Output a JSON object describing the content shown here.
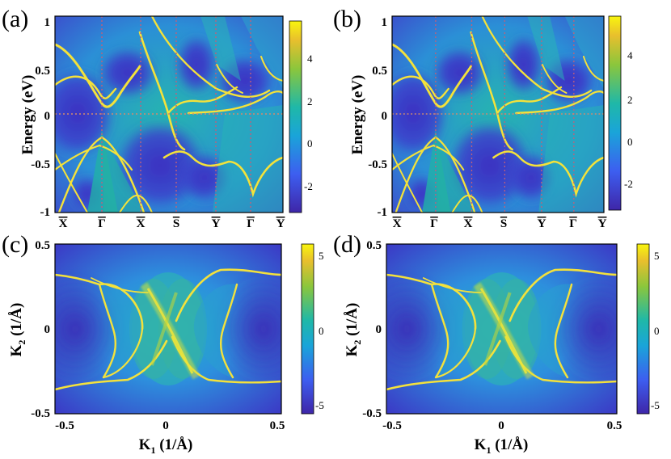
{
  "chart_data": [
    {
      "type": "heatmap",
      "panel_label": "(a)",
      "ylabel": "Energy (eV)",
      "ylim": [
        -1,
        1
      ],
      "y_ticks": [
        "1",
        "0.5",
        "0",
        "-0.5",
        "-1"
      ],
      "x_ticks": [
        "X",
        "Γ",
        "X",
        "S",
        "Y",
        "Γ",
        "Y"
      ],
      "colorbar": {
        "ticks": [
          "4",
          "2",
          "0",
          "-2"
        ],
        "range": [
          -3.2,
          5.8
        ]
      },
      "fermi_level": 0
    },
    {
      "type": "heatmap",
      "panel_label": "(b)",
      "ylabel": "Energy (eV)",
      "ylim": [
        -1,
        1
      ],
      "y_ticks": [
        "1",
        "0.5",
        "0",
        "-0.5",
        "-1"
      ],
      "x_ticks": [
        "X",
        "Γ",
        "X",
        "S",
        "Y",
        "Γ",
        "Y"
      ],
      "colorbar": {
        "ticks": [
          "4",
          "2",
          "0",
          "-2"
        ],
        "range": [
          -3.2,
          5.8
        ]
      },
      "fermi_level": 0
    },
    {
      "type": "heatmap",
      "panel_label": "(c)",
      "xlabel": "K",
      "xlabel_sub": "1",
      "xlabel_unit": " (1/Å)",
      "ylabel": "K",
      "ylabel_sub": "2",
      "ylabel_unit": " (1/Å)",
      "xlim": [
        -0.5,
        0.5
      ],
      "ylim": [
        -0.5,
        0.5
      ],
      "x_ticks": [
        "-0.5",
        "0",
        "0.5"
      ],
      "y_ticks": [
        "0.5",
        "0",
        "-0.5"
      ],
      "colorbar": {
        "ticks": [
          "5",
          "0",
          "-5"
        ],
        "range": [
          -6,
          6
        ]
      }
    },
    {
      "type": "heatmap",
      "panel_label": "(d)",
      "xlabel": "K",
      "xlabel_sub": "1",
      "xlabel_unit": " (1/Å)",
      "ylabel": "K",
      "ylabel_sub": "2",
      "ylabel_unit": " (1/Å)",
      "xlim": [
        -0.5,
        0.5
      ],
      "ylim": [
        -0.5,
        0.5
      ],
      "x_ticks": [
        "-0.5",
        "0",
        "0.5"
      ],
      "y_ticks": [
        "0.5",
        "0",
        "-0.5"
      ],
      "colorbar": {
        "ticks": [
          "5",
          "0",
          "-5"
        ],
        "range": [
          -6,
          6
        ]
      }
    }
  ],
  "colors": {
    "background_deep": "#3b35c4",
    "background_mid": "#2a9fd8",
    "teal": "#23b1a4",
    "band_bright": "#f5e630",
    "fermi_line": "#d08a70",
    "kpath_line": "#c0607a"
  }
}
